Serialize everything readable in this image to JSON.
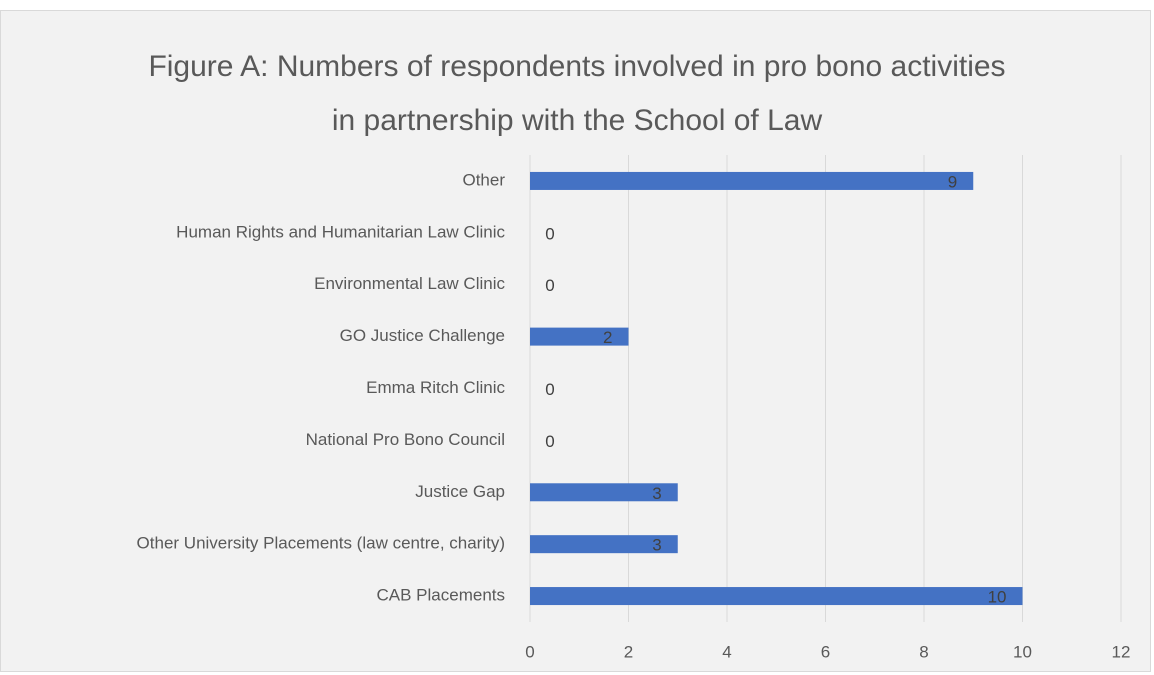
{
  "chart_data": {
    "type": "bar",
    "orientation": "horizontal",
    "title": "Figure A: Numbers of respondents involved in pro bono activities in partnership with the School of Law",
    "categories": [
      "Other",
      "Human Rights and Humanitarian Law Clinic",
      "Environmental Law Clinic",
      "GO Justice Challenge",
      "Emma Ritch Clinic",
      "National Pro Bono Council",
      "Justice Gap",
      "Other University Placements (law centre, charity)",
      "CAB Placements"
    ],
    "values": [
      9,
      0,
      0,
      2,
      0,
      0,
      3,
      3,
      10
    ],
    "color": "#4472c4",
    "xlim": [
      0,
      12
    ],
    "xticks": [
      0,
      2,
      4,
      6,
      8,
      10,
      12
    ],
    "grid": true
  }
}
